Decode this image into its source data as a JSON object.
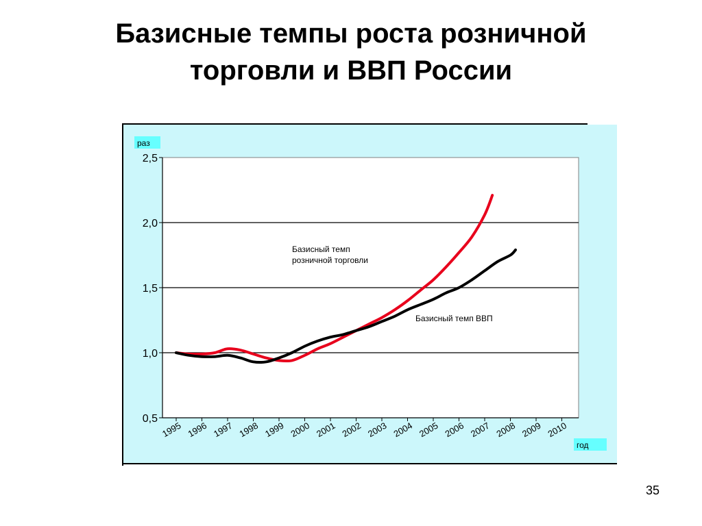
{
  "slide": {
    "title_line1": "Базисные темпы роста розничной",
    "title_line2": "торговли и ВВП России",
    "page_number": "35"
  },
  "colors": {
    "frame_background": "#ccf7fb",
    "plot_background": "#ffffff",
    "retail_line": "#e8001c",
    "gdp_line": "#000000",
    "label_box": "#66ffff"
  },
  "chart_data": {
    "type": "line",
    "ylabel": "раз",
    "xlabel": "год",
    "ylim": [
      0.5,
      2.5
    ],
    "yticks": [
      "0,5",
      "1,0",
      "1,5",
      "2,0",
      "2,5"
    ],
    "yticks_values": [
      0.5,
      1.0,
      1.5,
      2.0,
      2.5
    ],
    "categories": [
      "1995",
      "1996",
      "1997",
      "1998",
      "1999",
      "2000",
      "2001",
      "2002",
      "2003",
      "2004",
      "2005",
      "2006",
      "2007",
      "2008",
      "2009",
      "2010"
    ],
    "grid": "horizontal",
    "series": [
      {
        "name": "Базисный темп розничной торговли",
        "color_key": "retail_line",
        "x": [
          1995,
          1995.5,
          1996,
          1996.5,
          1997,
          1997.5,
          1998,
          1998.5,
          1999,
          1999.5,
          2000,
          2000.5,
          2001,
          2001.5,
          2002,
          2002.5,
          2003,
          2003.5,
          2004,
          2004.5,
          2005,
          2005.5,
          2006,
          2006.5,
          2007,
          2007.3
        ],
        "values": [
          1.0,
          0.99,
          0.99,
          1.0,
          1.03,
          1.02,
          0.99,
          0.96,
          0.94,
          0.94,
          0.98,
          1.03,
          1.07,
          1.12,
          1.17,
          1.22,
          1.27,
          1.33,
          1.4,
          1.48,
          1.56,
          1.66,
          1.77,
          1.89,
          2.06,
          2.21
        ]
      },
      {
        "name": "Базисный темп ВВП",
        "color_key": "gdp_line",
        "x": [
          1995,
          1995.5,
          1996,
          1996.5,
          1997,
          1997.5,
          1998,
          1998.5,
          1999,
          1999.5,
          2000,
          2000.5,
          2001,
          2001.5,
          2002,
          2002.5,
          2003,
          2003.5,
          2004,
          2004.5,
          2005,
          2005.5,
          2006,
          2006.5,
          2007,
          2007.5,
          2008,
          2008.2
        ],
        "values": [
          1.0,
          0.98,
          0.97,
          0.97,
          0.98,
          0.96,
          0.93,
          0.93,
          0.96,
          1.0,
          1.05,
          1.09,
          1.12,
          1.14,
          1.17,
          1.2,
          1.24,
          1.28,
          1.33,
          1.37,
          1.41,
          1.46,
          1.5,
          1.56,
          1.63,
          1.7,
          1.75,
          1.79
        ]
      }
    ],
    "annotations": {
      "retail_line1": "Базисный темп",
      "retail_line2": "розничной торговли",
      "gdp": "Базисный темп ВВП"
    }
  }
}
